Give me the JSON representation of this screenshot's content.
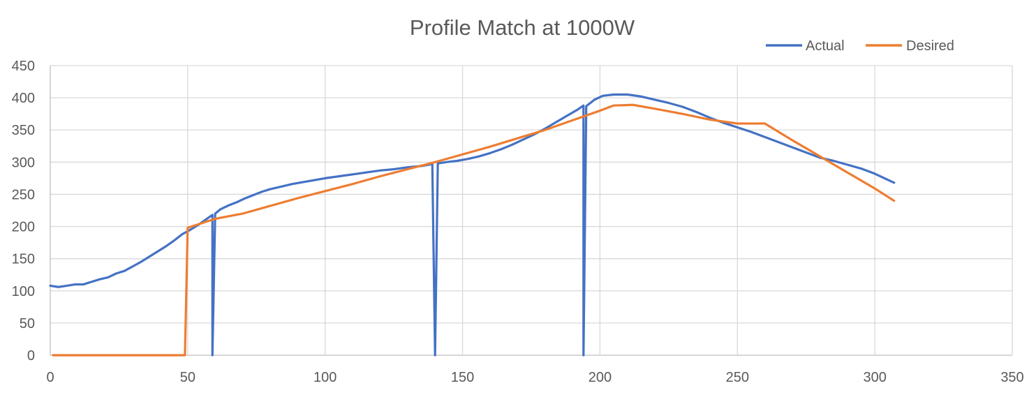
{
  "chart_data": {
    "type": "line",
    "title": "Profile Match at 1000W",
    "xlabel": "",
    "ylabel": "",
    "xlim": [
      0,
      350
    ],
    "ylim": [
      0,
      450
    ],
    "x_ticks": [
      0,
      50,
      100,
      150,
      200,
      250,
      300,
      350
    ],
    "y_ticks": [
      0,
      50,
      100,
      150,
      200,
      250,
      300,
      350,
      400,
      450
    ],
    "grid": true,
    "legend_position": "top-right",
    "series": [
      {
        "name": "Actual",
        "color": "#4472C4",
        "points": [
          [
            0,
            108
          ],
          [
            3,
            106
          ],
          [
            6,
            108
          ],
          [
            9,
            110
          ],
          [
            12,
            110
          ],
          [
            15,
            114
          ],
          [
            18,
            118
          ],
          [
            21,
            121
          ],
          [
            24,
            127
          ],
          [
            27,
            131
          ],
          [
            30,
            138
          ],
          [
            33,
            145
          ],
          [
            36,
            153
          ],
          [
            39,
            161
          ],
          [
            42,
            169
          ],
          [
            45,
            178
          ],
          [
            48,
            188
          ],
          [
            51,
            195
          ],
          [
            54,
            203
          ],
          [
            57,
            212
          ],
          [
            59,
            218
          ],
          [
            59,
            0
          ],
          [
            60,
            220
          ],
          [
            62,
            227
          ],
          [
            65,
            233
          ],
          [
            68,
            238
          ],
          [
            71,
            244
          ],
          [
            74,
            249
          ],
          [
            77,
            254
          ],
          [
            80,
            258
          ],
          [
            84,
            262
          ],
          [
            88,
            266
          ],
          [
            92,
            269
          ],
          [
            96,
            272
          ],
          [
            100,
            275
          ],
          [
            105,
            278
          ],
          [
            110,
            281
          ],
          [
            115,
            284
          ],
          [
            120,
            287
          ],
          [
            125,
            289
          ],
          [
            130,
            292
          ],
          [
            135,
            294
          ],
          [
            139,
            297
          ],
          [
            140,
            0
          ],
          [
            141,
            298
          ],
          [
            144,
            300
          ],
          [
            148,
            302
          ],
          [
            152,
            305
          ],
          [
            156,
            309
          ],
          [
            160,
            314
          ],
          [
            164,
            320
          ],
          [
            168,
            327
          ],
          [
            172,
            335
          ],
          [
            176,
            343
          ],
          [
            180,
            352
          ],
          [
            184,
            362
          ],
          [
            188,
            372
          ],
          [
            192,
            382
          ],
          [
            194,
            388
          ],
          [
            194,
            0
          ],
          [
            195,
            387
          ],
          [
            198,
            397
          ],
          [
            201,
            403
          ],
          [
            205,
            405
          ],
          [
            210,
            405
          ],
          [
            215,
            402
          ],
          [
            220,
            397
          ],
          [
            225,
            392
          ],
          [
            230,
            386
          ],
          [
            235,
            378
          ],
          [
            240,
            369
          ],
          [
            245,
            361
          ],
          [
            250,
            354
          ],
          [
            255,
            347
          ],
          [
            260,
            339
          ],
          [
            265,
            331
          ],
          [
            270,
            323
          ],
          [
            275,
            315
          ],
          [
            280,
            307
          ],
          [
            285,
            302
          ],
          [
            290,
            296
          ],
          [
            295,
            290
          ],
          [
            300,
            282
          ],
          [
            305,
            272
          ],
          [
            307,
            268
          ]
        ]
      },
      {
        "name": "Desired",
        "color": "#ED7D31",
        "points": [
          [
            1,
            0
          ],
          [
            49,
            0
          ],
          [
            50,
            198
          ],
          [
            60,
            212
          ],
          [
            70,
            220
          ],
          [
            80,
            232
          ],
          [
            90,
            244
          ],
          [
            100,
            255
          ],
          [
            110,
            266
          ],
          [
            120,
            278
          ],
          [
            130,
            289
          ],
          [
            140,
            300
          ],
          [
            150,
            312
          ],
          [
            160,
            324
          ],
          [
            170,
            337
          ],
          [
            180,
            350
          ],
          [
            190,
            365
          ],
          [
            200,
            380
          ],
          [
            205,
            388
          ],
          [
            212,
            389
          ],
          [
            220,
            383
          ],
          [
            230,
            375
          ],
          [
            240,
            366
          ],
          [
            250,
            360
          ],
          [
            260,
            360
          ],
          [
            270,
            334
          ],
          [
            280,
            309
          ],
          [
            290,
            284
          ],
          [
            300,
            259
          ],
          [
            307,
            240
          ]
        ]
      }
    ]
  }
}
